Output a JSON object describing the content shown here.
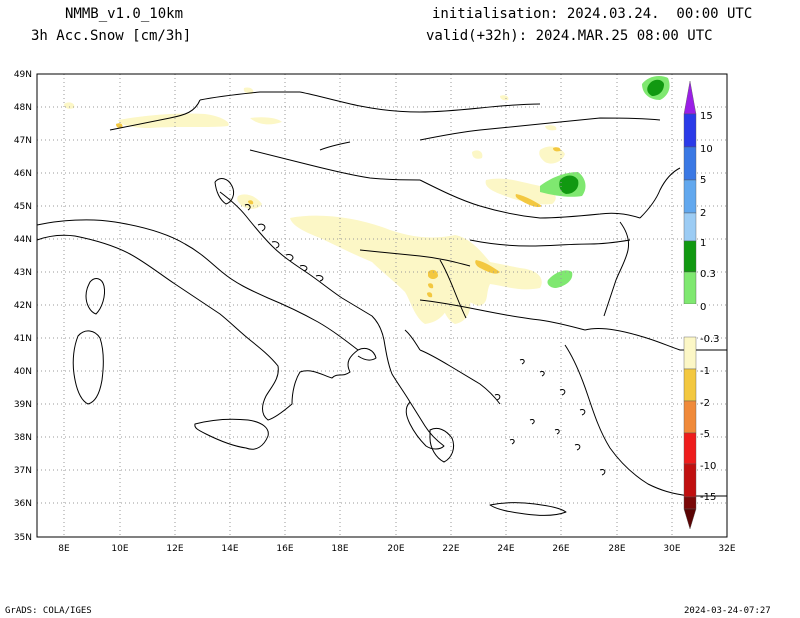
{
  "header": {
    "model": "NMMB_v1.0_10km",
    "variable": "3h Acc.Snow [cm/3h]",
    "init": "initialisation: 2024.03.24.  00:00 UTC",
    "valid": "valid(+32h): 2024.MAR.25 08:00 UTC"
  },
  "footer": {
    "credit": "GrADS: COLA/IGES",
    "timestamp": "2024-03-24-07:27"
  },
  "map": {
    "lat_labels": [
      "49N",
      "48N",
      "47N",
      "46N",
      "45N",
      "44N",
      "43N",
      "42N",
      "41N",
      "40N",
      "39N",
      "38N",
      "37N",
      "36N",
      "35N"
    ],
    "lon_labels": [
      "8E",
      "10E",
      "12E",
      "14E",
      "16E",
      "18E",
      "20E",
      "22E",
      "24E",
      "26E",
      "28E",
      "30E",
      "32E"
    ],
    "grid": true,
    "colors": {
      "coast": "#000000",
      "grid": "#9a9a9a"
    }
  },
  "colorbar": {
    "labels": [
      "15",
      "10",
      "5",
      "2",
      "1",
      "0.3",
      "0",
      "-0.3",
      "-1",
      "-2",
      "-5",
      "-10",
      "-15"
    ],
    "colors": {
      "top_arrow": "#9a1ee6",
      "c15": "#2a3ae8",
      "c10": "#3a78e4",
      "c5": "#62a8ee",
      "c2": "#9cccf4",
      "c1": "#119911",
      "c03": "#7fe870",
      "n03": "#fcf7c6",
      "n1": "#f3c840",
      "n2": "#f08a3a",
      "n5": "#ee1c1c",
      "n10": "#c01010",
      "n15": "#7a0808",
      "bottom_arrow": "#5a0404"
    }
  }
}
